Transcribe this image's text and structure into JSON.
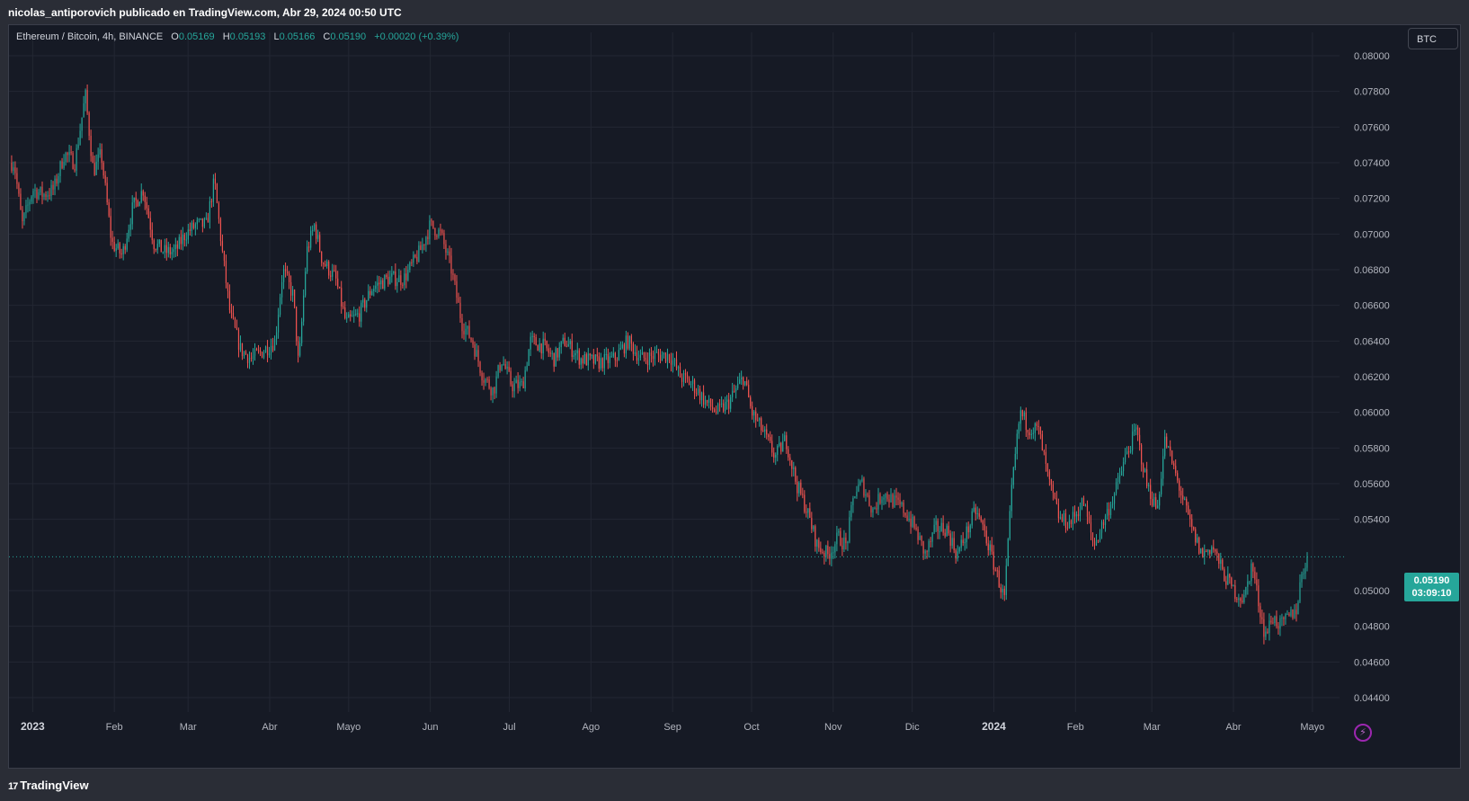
{
  "header": {
    "publish_line": "nicolas_antiporovich publicado en TradingView.com, Abr 29, 2024 00:50 UTC"
  },
  "legend": {
    "symbol": "Ethereum / Bitcoin, 4h, BINANCE",
    "o_label": "O",
    "o_value": "0.05169",
    "h_label": "H",
    "h_value": "0.05193",
    "l_label": "L",
    "l_value": "0.05166",
    "c_label": "C",
    "c_value": "0.05190",
    "change": "+0.00020 (+0.39%)"
  },
  "currency_button": "BTC",
  "price_badge": {
    "price": "0.05190",
    "countdown": "03:09:10"
  },
  "footer": {
    "logo_text": "TradingView",
    "logo_mark": "17"
  },
  "colors": {
    "up": "#26a69a",
    "down": "#ef5350",
    "background": "#161a25",
    "grid": "#232733"
  },
  "chart_data": {
    "type": "candlestick",
    "title": "Ethereum / Bitcoin, 4h, BINANCE",
    "y_unit": "BTC",
    "ylim": [
      0.0435,
      0.081
    ],
    "y_ticks": [
      "0.08000",
      "0.07800",
      "0.07600",
      "0.07400",
      "0.07200",
      "0.07000",
      "0.06800",
      "0.06600",
      "0.06400",
      "0.06200",
      "0.06000",
      "0.05800",
      "0.05600",
      "0.05400",
      "0.05000",
      "0.04800",
      "0.04600",
      "0.04400"
    ],
    "x_ticks": [
      "2023",
      "Feb",
      "Mar",
      "Abr",
      "Mayo",
      "Jun",
      "Jul",
      "Ago",
      "Sep",
      "Oct",
      "Nov",
      "Dic",
      "2024",
      "Feb",
      "Mar",
      "Abr",
      "Mayo"
    ],
    "last_price": 0.0519,
    "grid": true,
    "series_close": [
      [
        "2022-12-25",
        0.074
      ],
      [
        "2022-12-28",
        0.0705
      ],
      [
        "2023-01-01",
        0.0725
      ],
      [
        "2023-01-05",
        0.0722
      ],
      [
        "2023-01-09",
        0.0725
      ],
      [
        "2023-01-13",
        0.0745
      ],
      [
        "2023-01-17",
        0.074
      ],
      [
        "2023-01-21",
        0.0778
      ],
      [
        "2023-01-24",
        0.0735
      ],
      [
        "2023-01-27",
        0.0745
      ],
      [
        "2023-01-31",
        0.0695
      ],
      [
        "2023-02-04",
        0.0688
      ],
      [
        "2023-02-08",
        0.0715
      ],
      [
        "2023-02-12",
        0.0725
      ],
      [
        "2023-02-16",
        0.0695
      ],
      [
        "2023-02-20",
        0.069
      ],
      [
        "2023-02-24",
        0.069
      ],
      [
        "2023-02-28",
        0.07
      ],
      [
        "2023-03-04",
        0.0705
      ],
      [
        "2023-03-08",
        0.0705
      ],
      [
        "2023-03-11",
        0.073
      ],
      [
        "2023-03-14",
        0.069
      ],
      [
        "2023-03-17",
        0.0655
      ],
      [
        "2023-03-21",
        0.0635
      ],
      [
        "2023-03-25",
        0.063
      ],
      [
        "2023-03-30",
        0.0635
      ],
      [
        "2023-04-03",
        0.064
      ],
      [
        "2023-04-06",
        0.068
      ],
      [
        "2023-04-10",
        0.0665
      ],
      [
        "2023-04-12",
        0.0625
      ],
      [
        "2023-04-15",
        0.069
      ],
      [
        "2023-04-18",
        0.0705
      ],
      [
        "2023-04-21",
        0.0685
      ],
      [
        "2023-04-26",
        0.0675
      ],
      [
        "2023-04-30",
        0.065
      ],
      [
        "2023-05-05",
        0.0655
      ],
      [
        "2023-05-10",
        0.067
      ],
      [
        "2023-05-16",
        0.0675
      ],
      [
        "2023-05-22",
        0.0675
      ],
      [
        "2023-05-28",
        0.069
      ],
      [
        "2023-06-01",
        0.0705
      ],
      [
        "2023-06-05",
        0.07
      ],
      [
        "2023-06-09",
        0.068
      ],
      [
        "2023-06-13",
        0.065
      ],
      [
        "2023-06-17",
        0.064
      ],
      [
        "2023-06-21",
        0.062
      ],
      [
        "2023-06-25",
        0.0612
      ],
      [
        "2023-06-28",
        0.063
      ],
      [
        "2023-07-02",
        0.0615
      ],
      [
        "2023-07-06",
        0.0615
      ],
      [
        "2023-07-09",
        0.064
      ],
      [
        "2023-07-14",
        0.0637
      ],
      [
        "2023-07-18",
        0.063
      ],
      [
        "2023-07-22",
        0.064
      ],
      [
        "2023-07-28",
        0.063
      ],
      [
        "2023-08-04",
        0.0628
      ],
      [
        "2023-08-10",
        0.063
      ],
      [
        "2023-08-15",
        0.064
      ],
      [
        "2023-08-20",
        0.063
      ],
      [
        "2023-08-26",
        0.0632
      ],
      [
        "2023-08-31",
        0.0632
      ],
      [
        "2023-09-04",
        0.062
      ],
      [
        "2023-09-09",
        0.0615
      ],
      [
        "2023-09-14",
        0.0605
      ],
      [
        "2023-09-18",
        0.06
      ],
      [
        "2023-09-22",
        0.0605
      ],
      [
        "2023-09-28",
        0.062
      ],
      [
        "2023-10-01",
        0.06
      ],
      [
        "2023-10-05",
        0.059
      ],
      [
        "2023-10-10",
        0.0575
      ],
      [
        "2023-10-14",
        0.0585
      ],
      [
        "2023-10-18",
        0.056
      ],
      [
        "2023-10-22",
        0.0545
      ],
      [
        "2023-10-26",
        0.0525
      ],
      [
        "2023-10-30",
        0.052
      ],
      [
        "2023-11-03",
        0.053
      ],
      [
        "2023-11-06",
        0.0525
      ],
      [
        "2023-11-09",
        0.0555
      ],
      [
        "2023-11-12",
        0.056
      ],
      [
        "2023-11-16",
        0.0545
      ],
      [
        "2023-11-20",
        0.0555
      ],
      [
        "2023-11-24",
        0.055
      ],
      [
        "2023-11-28",
        0.0545
      ],
      [
        "2023-12-02",
        0.0535
      ],
      [
        "2023-12-06",
        0.052
      ],
      [
        "2023-12-10",
        0.0535
      ],
      [
        "2023-12-14",
        0.0535
      ],
      [
        "2023-12-18",
        0.052
      ],
      [
        "2023-12-21",
        0.053
      ],
      [
        "2023-12-25",
        0.0545
      ],
      [
        "2023-12-28",
        0.0535
      ],
      [
        "2024-01-01",
        0.0515
      ],
      [
        "2024-01-05",
        0.0495
      ],
      [
        "2024-01-08",
        0.056
      ],
      [
        "2024-01-11",
        0.06
      ],
      [
        "2024-01-14",
        0.0592
      ],
      [
        "2024-01-18",
        0.059
      ],
      [
        "2024-01-22",
        0.056
      ],
      [
        "2024-01-26",
        0.054
      ],
      [
        "2024-01-30",
        0.0538
      ],
      [
        "2024-02-04",
        0.055
      ],
      [
        "2024-02-08",
        0.0525
      ],
      [
        "2024-02-12",
        0.054
      ],
      [
        "2024-02-16",
        0.0555
      ],
      [
        "2024-02-20",
        0.0575
      ],
      [
        "2024-02-24",
        0.059
      ],
      [
        "2024-02-28",
        0.056
      ],
      [
        "2024-03-03",
        0.0545
      ],
      [
        "2024-03-06",
        0.0585
      ],
      [
        "2024-03-09",
        0.057
      ],
      [
        "2024-03-12",
        0.0555
      ],
      [
        "2024-03-16",
        0.0535
      ],
      [
        "2024-03-20",
        0.052
      ],
      [
        "2024-03-24",
        0.0525
      ],
      [
        "2024-03-28",
        0.051
      ],
      [
        "2024-04-01",
        0.05
      ],
      [
        "2024-04-05",
        0.0495
      ],
      [
        "2024-04-08",
        0.0515
      ],
      [
        "2024-04-11",
        0.049
      ],
      [
        "2024-04-13",
        0.0475
      ],
      [
        "2024-04-16",
        0.0485
      ],
      [
        "2024-04-19",
        0.048
      ],
      [
        "2024-04-22",
        0.0485
      ],
      [
        "2024-04-25",
        0.049
      ],
      [
        "2024-04-27",
        0.051
      ],
      [
        "2024-04-29",
        0.0519
      ]
    ]
  }
}
